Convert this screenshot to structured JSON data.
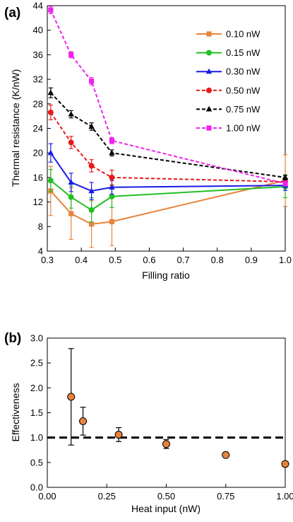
{
  "chart_data": [
    {
      "panel_label": "(a)",
      "type": "line",
      "xlabel": "Filling ratio",
      "ylabel": "Thermal resistance (K/nW)",
      "xlim": [
        0.3,
        1.0
      ],
      "ylim": [
        4,
        44
      ],
      "xticks": [
        0.3,
        0.4,
        0.5,
        0.6,
        0.7,
        0.8,
        0.9,
        1.0
      ],
      "xtick_labels": [
        "0.3",
        "0.4",
        "0.5",
        "0.6",
        "0.7",
        "0.8",
        "0.9",
        "1.0"
      ],
      "yticks": [
        4,
        8,
        12,
        16,
        20,
        24,
        28,
        32,
        36,
        40,
        44
      ],
      "ytick_labels": [
        "4",
        "8",
        "12",
        "16",
        "20",
        "24",
        "28",
        "32",
        "36",
        "40",
        "44"
      ],
      "grid": false,
      "legend_position": "top-right",
      "series": [
        {
          "name": "0.10 nW",
          "color": "#e8833a",
          "marker": "square",
          "dash": "solid",
          "x": [
            0.31,
            0.37,
            0.43,
            0.49,
            1.0
          ],
          "y": [
            13.8,
            10.1,
            8.4,
            8.8,
            15.5
          ],
          "err": [
            4.0,
            4.2,
            3.8,
            3.9,
            4.2
          ]
        },
        {
          "name": "0.15 nW",
          "color": "#22c022",
          "marker": "circle",
          "dash": "solid",
          "x": [
            0.31,
            0.37,
            0.43,
            0.49,
            1.0
          ],
          "y": [
            15.5,
            12.8,
            10.7,
            12.9,
            14.5
          ],
          "err": [
            1.8,
            1.8,
            2.0,
            1.8,
            1.8
          ]
        },
        {
          "name": "0.30 nW",
          "color": "#1a1ae6",
          "marker": "triangle",
          "dash": "solid",
          "x": [
            0.31,
            0.37,
            0.43,
            0.49,
            1.0
          ],
          "y": [
            20.0,
            15.2,
            13.8,
            14.4,
            14.7
          ],
          "err": [
            1.5,
            1.5,
            1.4,
            1.1,
            0.8
          ]
        },
        {
          "name": "0.50 nW",
          "color": "#e61a1a",
          "marker": "circle",
          "dash": "dashed",
          "x": [
            0.31,
            0.37,
            0.43,
            0.49,
            1.0
          ],
          "y": [
            26.6,
            21.7,
            17.9,
            16.0,
            15.3
          ],
          "err": [
            1.2,
            1.0,
            1.0,
            1.2,
            0.6
          ]
        },
        {
          "name": "0.75 nW",
          "color": "#000000",
          "marker": "triangle",
          "dash": "dashed",
          "x": [
            0.31,
            0.37,
            0.43,
            0.49,
            1.0
          ],
          "y": [
            29.8,
            26.3,
            24.3,
            20.0,
            16.0
          ],
          "err": [
            0.8,
            0.6,
            0.6,
            0.5,
            0.4
          ]
        },
        {
          "name": "1.00 nW",
          "color": "#ee22ee",
          "marker": "square",
          "dash": "dashed",
          "x": [
            0.31,
            0.37,
            0.43,
            0.49,
            1.0
          ],
          "y": [
            43.3,
            36.0,
            31.7,
            22.0,
            15.0
          ],
          "err": [
            0.6,
            0.5,
            0.6,
            0.5,
            0.4
          ]
        }
      ]
    },
    {
      "panel_label": "(b)",
      "type": "scatter",
      "xlabel": "Heat input (nW)",
      "ylabel": "Effectiveness",
      "xlim": [
        0.0,
        1.0
      ],
      "ylim": [
        0.0,
        3.0
      ],
      "xticks": [
        0.0,
        0.25,
        0.5,
        0.75,
        1.0
      ],
      "xtick_labels": [
        "0.00",
        "0.25",
        "0.50",
        "0.75",
        "1.00"
      ],
      "yticks": [
        0.0,
        0.5,
        1.0,
        1.5,
        2.0,
        2.5,
        3.0
      ],
      "ytick_labels": [
        "0.0",
        "0.5",
        "1.0",
        "1.5",
        "2.0",
        "2.5",
        "3.0"
      ],
      "grid": false,
      "reference_line": {
        "y": 1.0,
        "style": "dashed",
        "color": "#000000"
      },
      "marker_color": "#e8833a",
      "series": [
        {
          "x": [
            0.1,
            0.15,
            0.3,
            0.5,
            0.75,
            1.0
          ],
          "y": [
            1.82,
            1.33,
            1.06,
            0.87,
            0.65,
            0.47
          ],
          "err": [
            0.97,
            0.28,
            0.14,
            0.09,
            0.0,
            0.0
          ]
        }
      ]
    }
  ]
}
